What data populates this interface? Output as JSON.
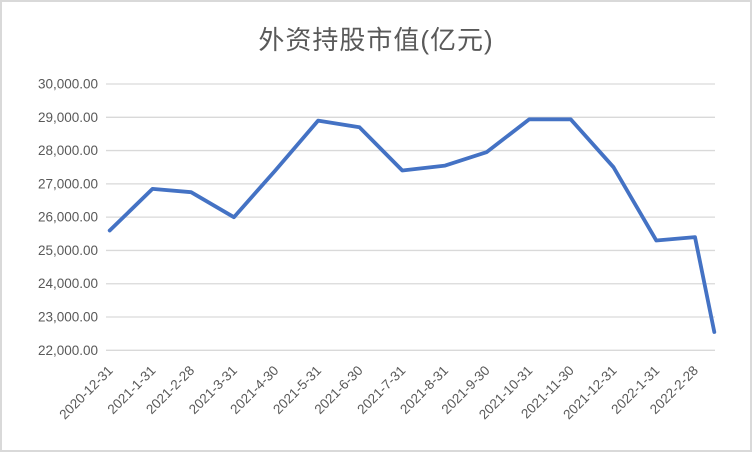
{
  "chart": {
    "background": "#FFFFFF",
    "frame_border_color": "#D9D9D9",
    "title_color": "#595959",
    "axis_text_color": "#595959",
    "gridline_color": "#D9D9D9",
    "line_color": "#4472C4"
  },
  "chart_data": {
    "type": "line",
    "title": "外资持股市值(亿元)",
    "legend": "none",
    "grid": "horizontal",
    "y_axis": {
      "min": 22000,
      "max": 30000,
      "step": 1000,
      "tick_labels_top_to_bottom": [
        "30,000.00",
        "29,000.00",
        "28,000.00",
        "27,000.00",
        "26,000.00",
        "25,000.00",
        "24,000.00",
        "23,000.00",
        "22,000.00"
      ]
    },
    "x_axis": {
      "type": "date-proportional",
      "label_rotation_deg": 45,
      "tick_labels": [
        "2020-12-31",
        "2021-1-31",
        "2021-2-28",
        "2021-3-31",
        "2021-4-30",
        "2021-5-31",
        "2021-6-30",
        "2021-7-31",
        "2021-8-31",
        "2021-9-30",
        "2021-10-31",
        "2021-11-30",
        "2021-12-31",
        "2022-1-31",
        "2022-2-28"
      ]
    },
    "series": [
      {
        "name": "外资持股市值(亿元)",
        "color": "#4472C4",
        "points": [
          {
            "label": "2020-12-31",
            "days": 0,
            "value": 25600
          },
          {
            "label": "2021-1-31",
            "days": 31,
            "value": 26850
          },
          {
            "label": "2021-2-28",
            "days": 59,
            "value": 26750
          },
          {
            "label": "2021-3-31",
            "days": 90,
            "value": 26000
          },
          {
            "label": "2021-4-30",
            "days": 120,
            "value": 27400
          },
          {
            "label": "2021-5-31",
            "days": 151,
            "value": 28900
          },
          {
            "label": "2021-6-30",
            "days": 181,
            "value": 28700
          },
          {
            "label": "2021-7-31",
            "days": 212,
            "value": 27400
          },
          {
            "label": "2021-8-31",
            "days": 243,
            "value": 27550
          },
          {
            "label": "2021-9-30",
            "days": 273,
            "value": 27950
          },
          {
            "label": "2021-10-31",
            "days": 304,
            "value": 28940
          },
          {
            "label": "2021-11-30",
            "days": 334,
            "value": 28940
          },
          {
            "label": "2021-12-31",
            "days": 365,
            "value": 27500
          },
          {
            "label": "2022-1-31",
            "days": 396,
            "value": 25300
          },
          {
            "label": "2022-2-28",
            "days": 424,
            "value": 25400
          },
          {
            "label": "",
            "days": 438,
            "value": 22550,
            "unlabeled": true
          }
        ]
      }
    ]
  }
}
